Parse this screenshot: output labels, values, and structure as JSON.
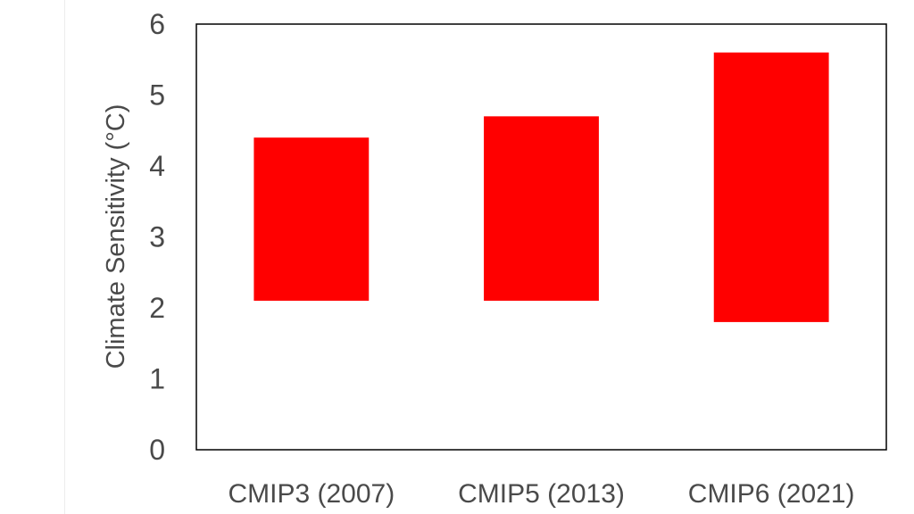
{
  "chart_data": {
    "type": "bar",
    "subtype": "floating-range",
    "title": "",
    "xlabel": "",
    "ylabel": "Climate Sensitivity (°C)",
    "ylim": [
      0,
      6
    ],
    "yticks": [
      0,
      1,
      2,
      3,
      4,
      5,
      6
    ],
    "grid": false,
    "categories": [
      "CMIP3 (2007)",
      "CMIP5 (2013)",
      "CMIP6 (2021)"
    ],
    "ranges": [
      {
        "low": 2.1,
        "high": 4.4
      },
      {
        "low": 2.1,
        "high": 4.7
      },
      {
        "low": 1.8,
        "high": 5.6
      }
    ],
    "bar_color": "#ff0000",
    "frame_color": "#000000",
    "text_color": "#4a4a4a"
  }
}
